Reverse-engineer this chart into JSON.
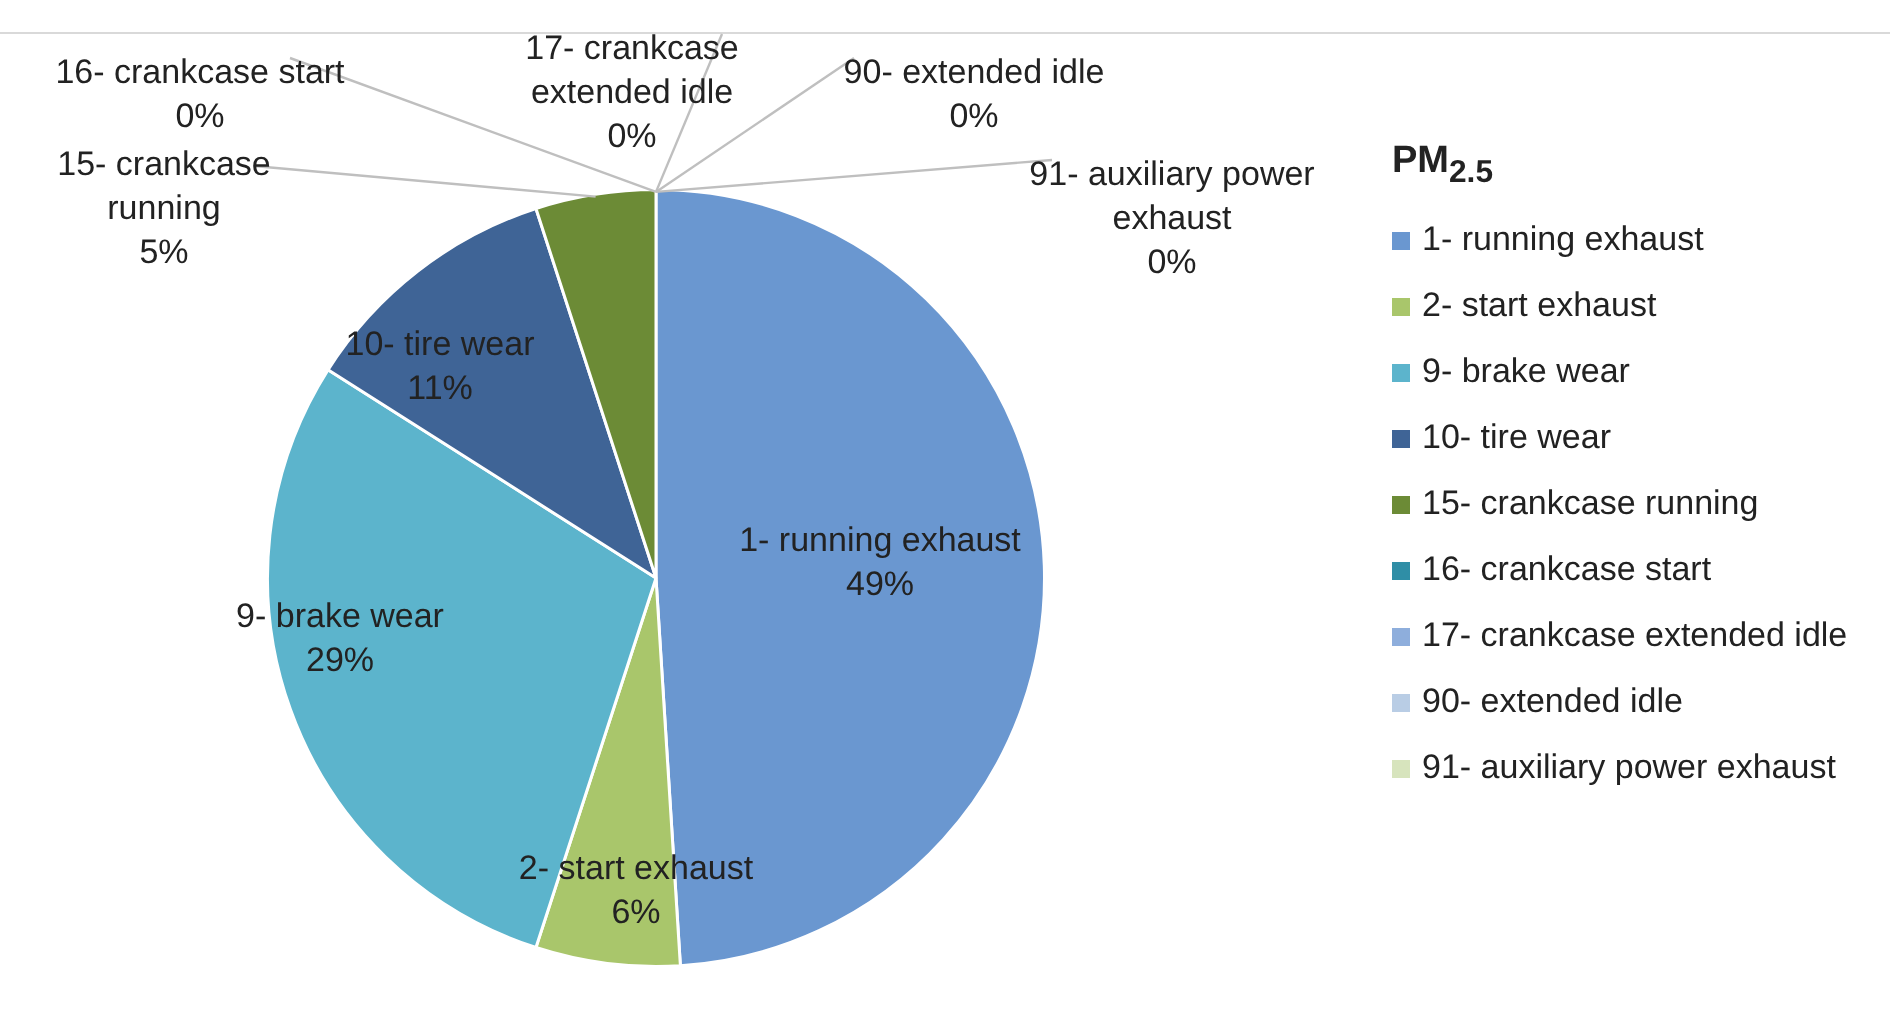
{
  "chart_data": {
    "type": "pie",
    "legend_title": "PM$_{2.5}$",
    "legend": "right",
    "categories": [
      "1- running exhaust",
      "2- start exhaust",
      "9- brake wear",
      "10- tire wear",
      "15- crankcase running",
      "16- crankcase start",
      "17- crankcase extended idle",
      "90- extended idle",
      "91- auxiliary power exhaust"
    ],
    "values": [
      49,
      6,
      29,
      11,
      5,
      0,
      0,
      0,
      0
    ],
    "value_labels": [
      "49%",
      "6%",
      "29%",
      "11%",
      "5%",
      "0%",
      "0%",
      "0%",
      "0%"
    ],
    "colors": [
      "#6a97d0",
      "#a9c66b",
      "#5cb4cc",
      "#3f6496",
      "#6c8b36",
      "#2f8ea6",
      "#8eaedc",
      "#b9cde5",
      "#d7e4bd"
    ]
  }
}
